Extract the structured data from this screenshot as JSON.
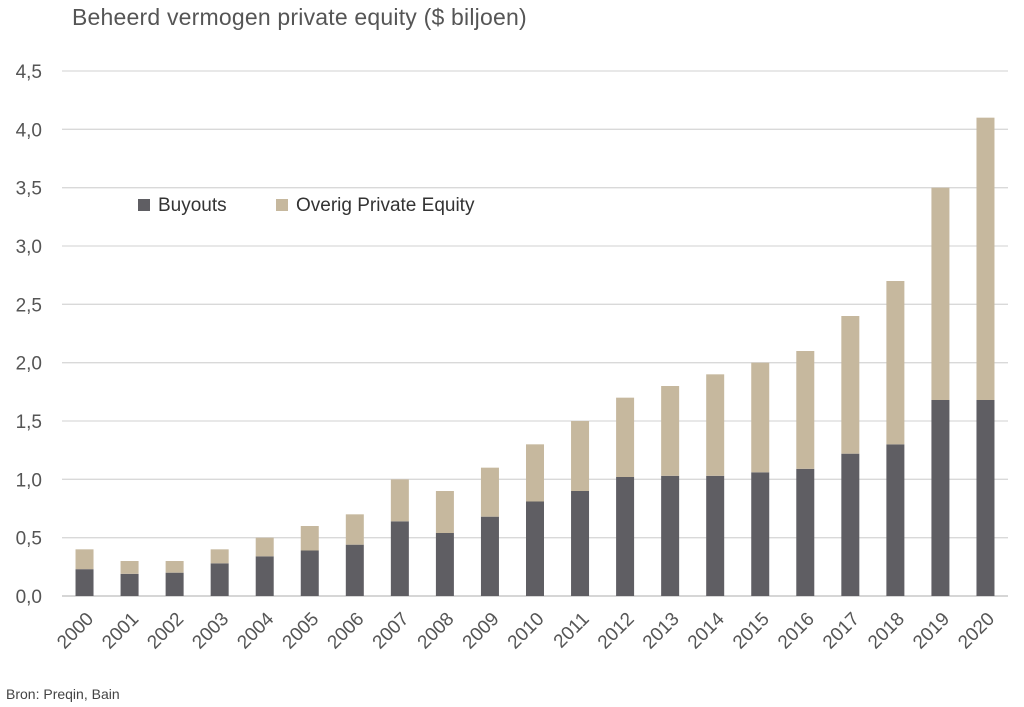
{
  "chart_data": {
    "type": "bar",
    "stacked": true,
    "title": "Beheerd vermogen private equity ($ biljoen)",
    "source": "Bron: Preqin, Bain",
    "categories": [
      "2000",
      "2001",
      "2002",
      "2003",
      "2004",
      "2005",
      "2006",
      "2007",
      "2008",
      "2009",
      "2010",
      "2011",
      "2012",
      "2013",
      "2014",
      "2015",
      "2016",
      "2017",
      "2018",
      "2019",
      "2020"
    ],
    "series": [
      {
        "name": "Buyouts",
        "color": "#5f5e63",
        "values": [
          0.23,
          0.19,
          0.2,
          0.28,
          0.34,
          0.39,
          0.44,
          0.64,
          0.54,
          0.68,
          0.81,
          0.9,
          1.02,
          1.03,
          1.03,
          1.06,
          1.09,
          1.22,
          1.3,
          1.68,
          1.68
        ]
      },
      {
        "name": "Overig Private Equity",
        "color": "#c6b89e",
        "values": [
          0.17,
          0.11,
          0.1,
          0.12,
          0.16,
          0.21,
          0.26,
          0.36,
          0.36,
          0.42,
          0.49,
          0.6,
          0.68,
          0.77,
          0.87,
          0.94,
          1.01,
          1.18,
          1.4,
          1.82,
          2.42
        ]
      }
    ],
    "ylim": [
      0,
      4.5
    ],
    "yticks": [
      "0,0",
      "0,5",
      "1,0",
      "1,5",
      "2,0",
      "2,5",
      "3,0",
      "3,5",
      "4,0",
      "4,5"
    ],
    "grid": true,
    "legend_position": "upper-left"
  }
}
